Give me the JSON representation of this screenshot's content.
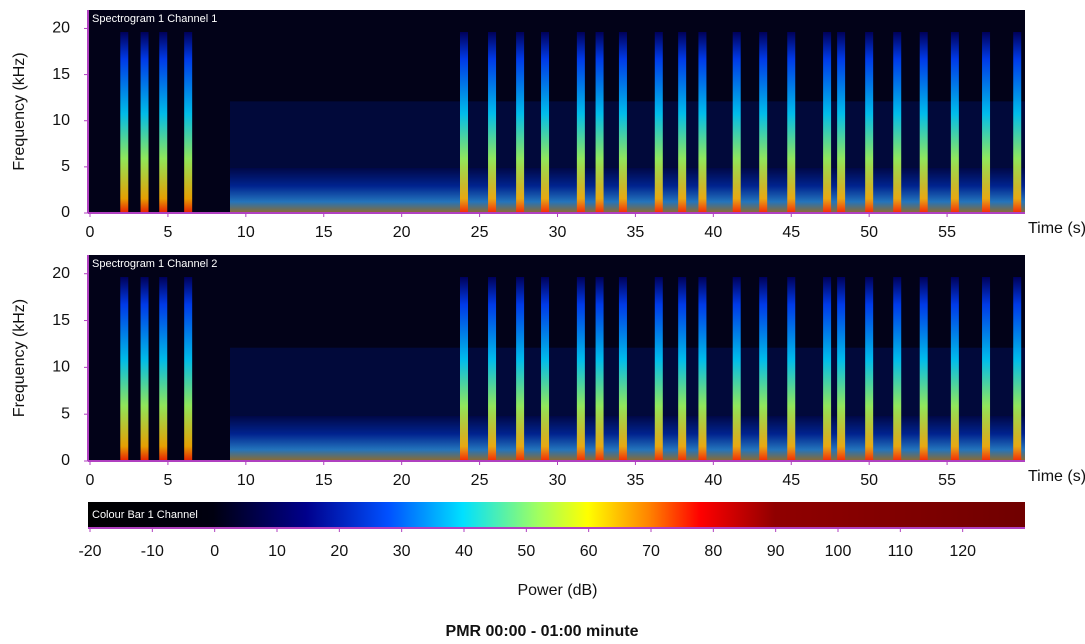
{
  "chart_data": [
    {
      "type": "spectrogram",
      "title": "Spectrogram 1 Channel 1",
      "x_label": "Time (s)",
      "y_label": "Frequency (kHz)",
      "xlim": [
        0,
        60
      ],
      "xticks": [
        0,
        5,
        10,
        15,
        20,
        25,
        30,
        35,
        40,
        45,
        50,
        55
      ],
      "ylim": [
        0,
        22
      ],
      "yticks": [
        0,
        5,
        10,
        15,
        20
      ],
      "events": [
        2.2,
        3.5,
        4.7,
        6.3,
        24,
        25.8,
        27.6,
        29.2,
        31.5,
        32.7,
        34.2,
        36.5,
        38,
        39.3,
        41.5,
        43.2,
        45,
        47.3,
        48.2,
        50,
        51.8,
        53.5,
        55.5,
        57.5,
        59.5
      ]
    },
    {
      "type": "spectrogram",
      "title": "Spectrogram 1 Channel 2",
      "x_label": "Time (s)",
      "y_label": "Frequency (kHz)",
      "xlim": [
        0,
        60
      ],
      "xticks": [
        0,
        5,
        10,
        15,
        20,
        25,
        30,
        35,
        40,
        45,
        50,
        55
      ],
      "ylim": [
        0,
        22
      ],
      "yticks": [
        0,
        5,
        10,
        15,
        20
      ],
      "events": [
        2.2,
        3.5,
        4.7,
        6.3,
        24,
        25.8,
        27.6,
        29.2,
        31.5,
        32.7,
        34.2,
        36.5,
        38,
        39.3,
        41.5,
        43.2,
        45,
        47.3,
        48.2,
        50,
        51.8,
        53.5,
        55.5,
        57.5,
        59.5
      ]
    },
    {
      "type": "colorbar",
      "title": "Colour Bar 1 Channel",
      "x_label": "Power (dB)",
      "xlim": [
        -20,
        130
      ],
      "xticks": [
        -20,
        -10,
        0,
        10,
        20,
        30,
        40,
        50,
        60,
        70,
        80,
        90,
        100,
        110,
        120
      ],
      "colormap": [
        {
          "value": -20,
          "color": "#000000"
        },
        {
          "value": 0,
          "color": "#000010"
        },
        {
          "value": 15,
          "color": "#00008c"
        },
        {
          "value": 28,
          "color": "#0050ff"
        },
        {
          "value": 40,
          "color": "#00e0ff"
        },
        {
          "value": 52,
          "color": "#a0ff60"
        },
        {
          "value": 60,
          "color": "#ffff00"
        },
        {
          "value": 70,
          "color": "#ff8000"
        },
        {
          "value": 78,
          "color": "#ff0000"
        },
        {
          "value": 90,
          "color": "#900000"
        },
        {
          "value": 130,
          "color": "#700000"
        }
      ]
    }
  ],
  "caption": "PMR 00:00 - 01:00 minute"
}
